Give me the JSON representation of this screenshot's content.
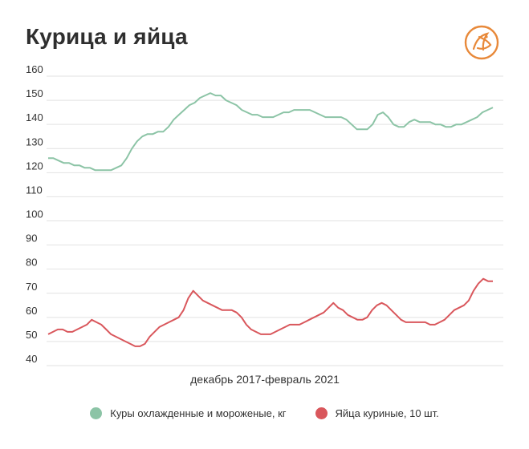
{
  "chart_data": {
    "type": "line",
    "title": "Курица и яйца",
    "xlabel": "декабрь 2017-февраль 2021",
    "ylabel": "",
    "ylim": [
      40,
      160
    ],
    "yticks": [
      40,
      50,
      60,
      70,
      80,
      90,
      100,
      110,
      120,
      130,
      140,
      150,
      160
    ],
    "grid": true,
    "legend_placement": "bottom",
    "series": [
      {
        "name": "Куры охлажденные и мороженые, кг",
        "color": "#8cc4a6",
        "values": [
          126,
          126,
          125,
          124,
          124,
          123,
          123,
          122,
          122,
          121,
          121,
          121,
          121,
          122,
          123,
          126,
          130,
          133,
          135,
          136,
          136,
          137,
          137,
          139,
          142,
          144,
          146,
          148,
          149,
          151,
          152,
          153,
          152,
          152,
          150,
          149,
          148,
          146,
          145,
          144,
          144,
          143,
          143,
          143,
          144,
          145,
          145,
          146,
          146,
          146,
          146,
          145,
          144,
          143,
          143,
          143,
          143,
          142,
          140,
          138,
          138,
          138,
          140,
          144,
          145,
          143,
          140,
          139,
          139,
          141,
          142,
          141,
          141,
          141,
          140,
          140,
          139,
          139,
          140,
          140,
          141,
          142,
          143,
          145,
          146,
          147
        ]
      },
      {
        "name": "Яйца куриные, 10 шт.",
        "color": "#d9575c",
        "values": [
          53,
          54,
          55,
          55,
          54,
          54,
          55,
          56,
          57,
          59,
          58,
          57,
          55,
          53,
          52,
          51,
          50,
          49,
          48,
          48,
          49,
          52,
          54,
          56,
          57,
          58,
          59,
          60,
          63,
          68,
          71,
          69,
          67,
          66,
          65,
          64,
          63,
          63,
          63,
          62,
          60,
          57,
          55,
          54,
          53,
          53,
          53,
          54,
          55,
          56,
          57,
          57,
          57,
          58,
          59,
          60,
          61,
          62,
          64,
          66,
          64,
          63,
          61,
          60,
          59,
          59,
          60,
          63,
          65,
          66,
          65,
          63,
          61,
          59,
          58,
          58,
          58,
          58,
          58,
          57,
          57,
          58,
          59,
          61,
          63,
          64,
          65,
          67,
          71,
          74,
          76,
          75,
          75
        ]
      }
    ]
  },
  "logo": {
    "name": "brand-logo",
    "color": "#e8893a"
  }
}
